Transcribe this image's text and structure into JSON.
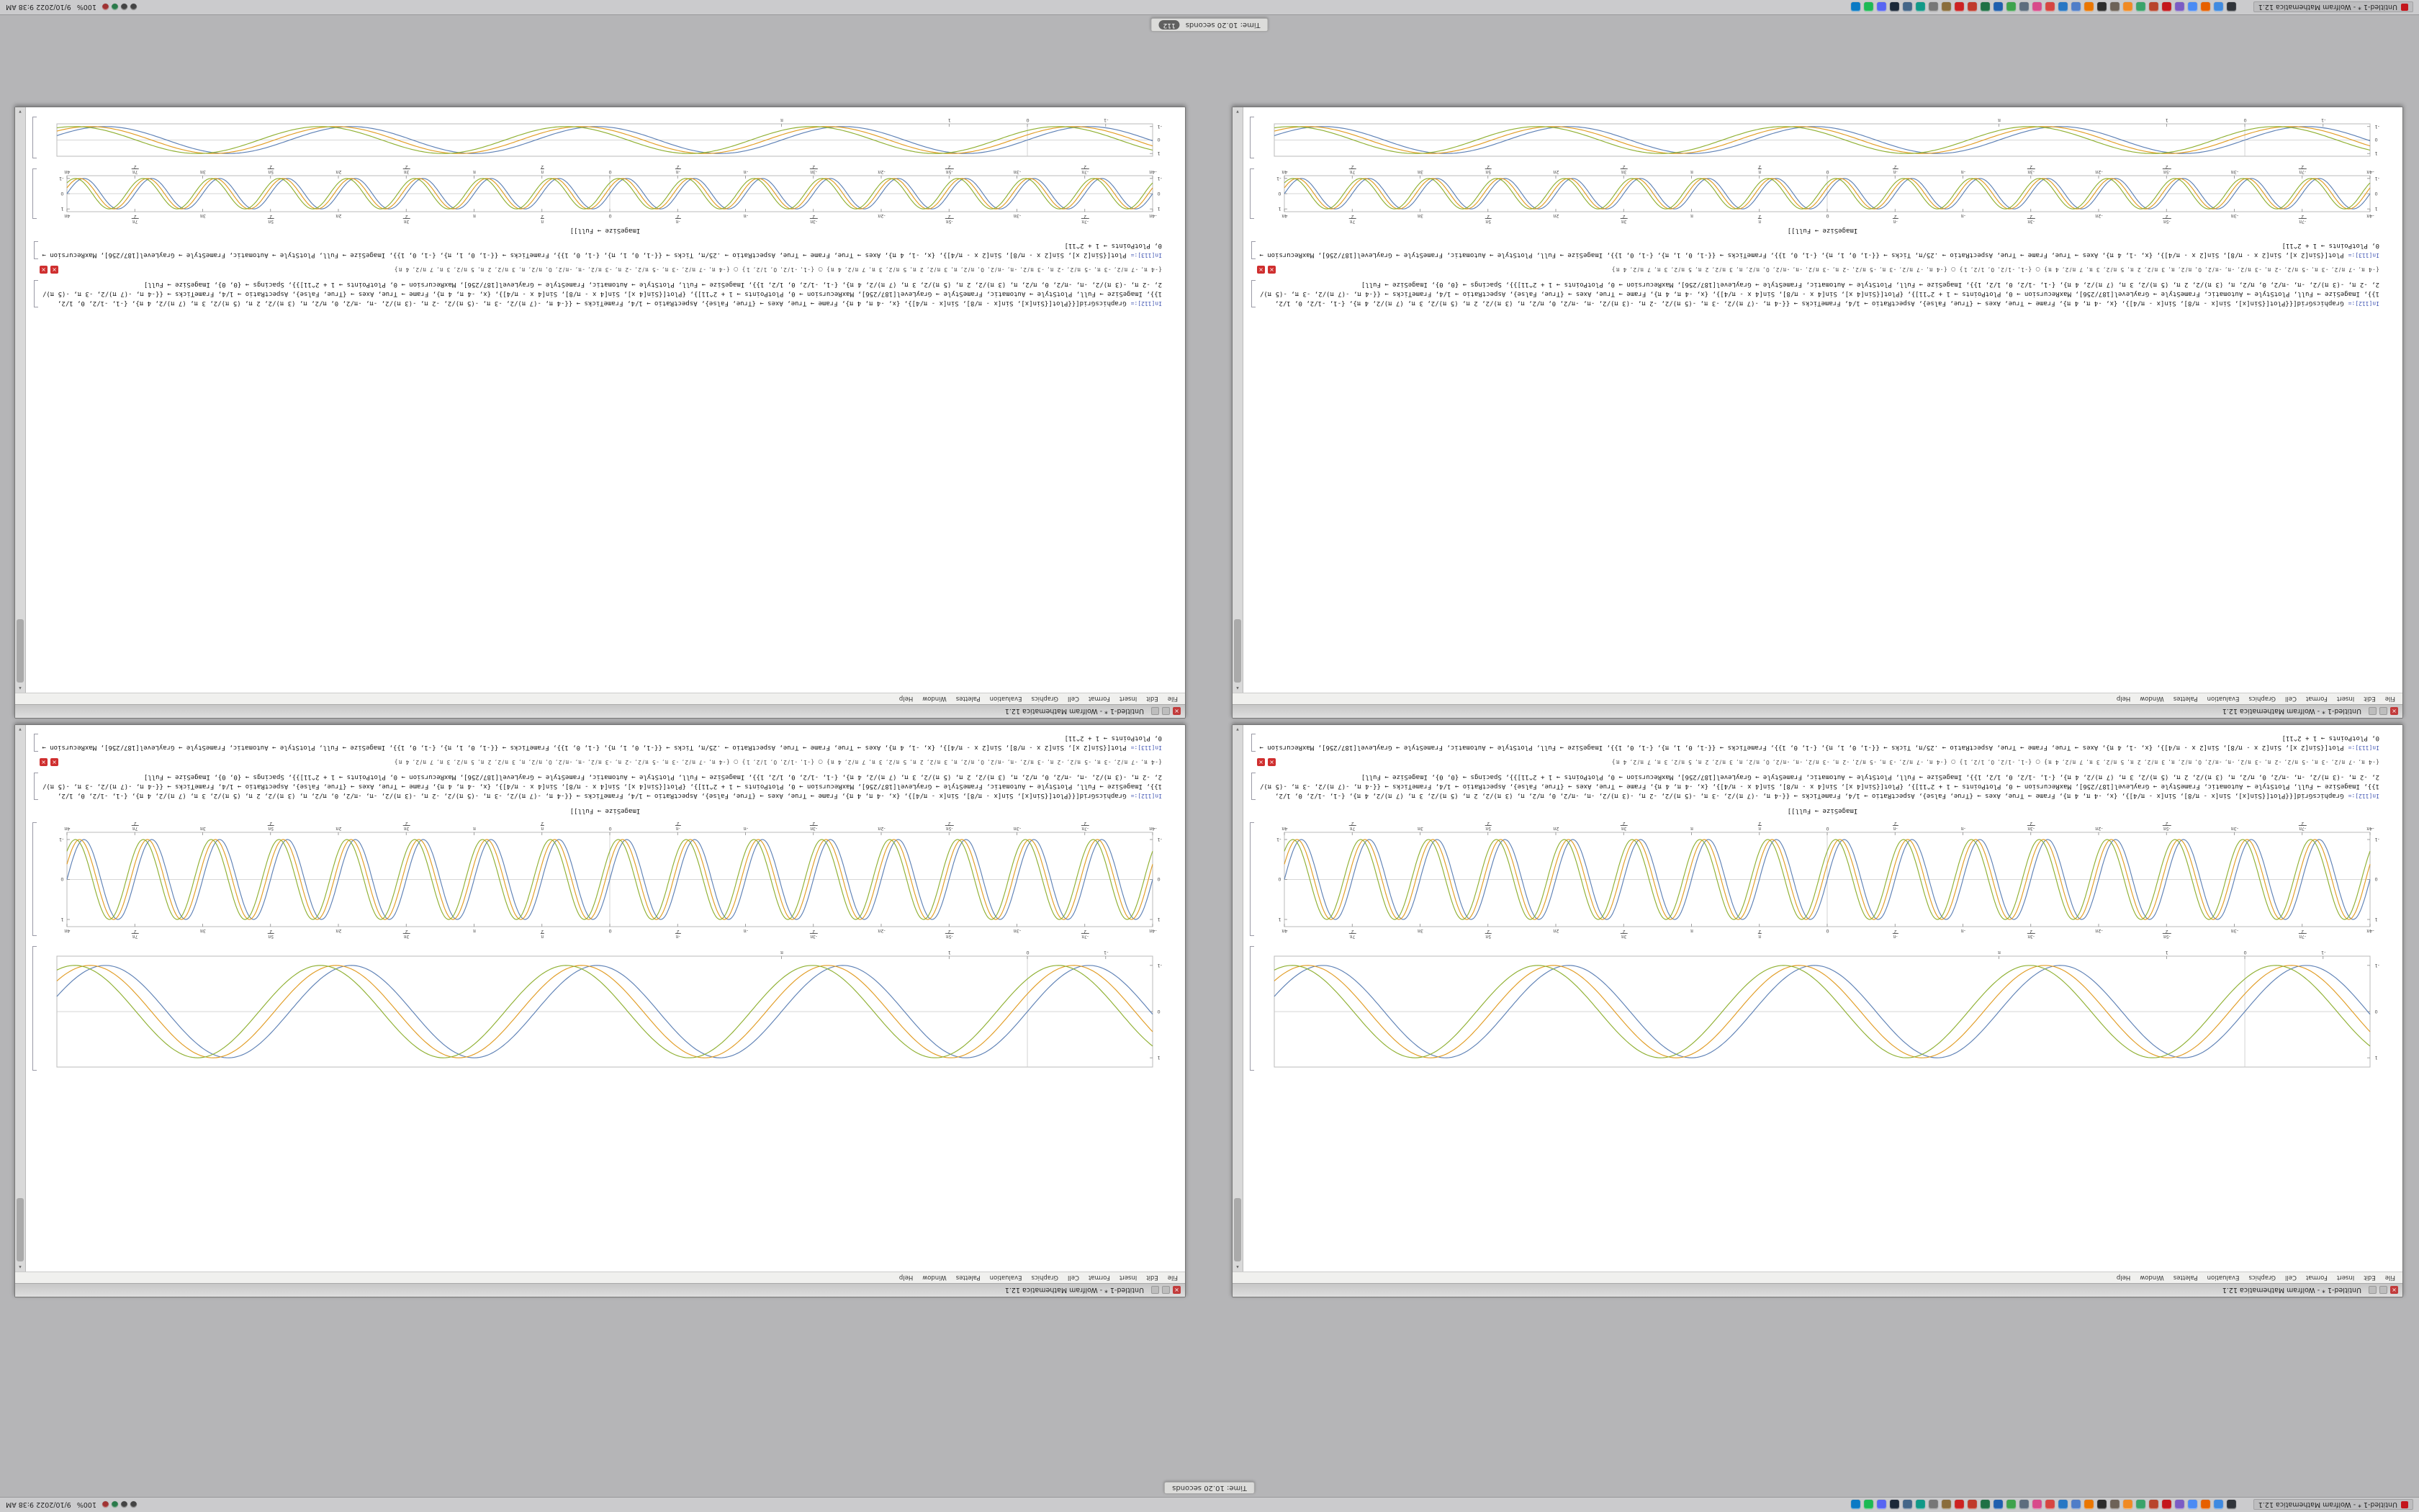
{
  "colors": {
    "accent_red": "#c4161c",
    "plot_blue": "#5e81b5",
    "plot_yellow": "#e19c24",
    "plot_green": "#8fb032",
    "frame_gray": "#bbbbbb"
  },
  "notifications": {
    "a": "Time: 10.20 seconds",
    "b": "Time: 10.20 seconds",
    "badge": "112"
  },
  "panels": {
    "task_label": "Untitled-1 * - Wolfram Mathematica 12.1",
    "clock": "9/10/2022  9:38 AM",
    "pct": "100%",
    "icons": [
      {
        "name": "terminal",
        "color": "#30343a"
      },
      {
        "name": "files",
        "color": "#3f8ae0"
      },
      {
        "name": "firefox",
        "color": "#e66000"
      },
      {
        "name": "chromium",
        "color": "#4b8bf4"
      },
      {
        "name": "editor",
        "color": "#7b5cc4"
      },
      {
        "name": "mathematica",
        "color": "#c4161c"
      },
      {
        "name": "kernel",
        "color": "#b8452c"
      },
      {
        "name": "image-viewer",
        "color": "#3aa36a"
      },
      {
        "name": "vlc",
        "color": "#f08a24"
      },
      {
        "name": "gimp",
        "color": "#6d6257"
      },
      {
        "name": "inkscape",
        "color": "#2c2c2c"
      },
      {
        "name": "blender",
        "color": "#ea7600"
      },
      {
        "name": "calculator",
        "color": "#4f7dc8"
      },
      {
        "name": "mail",
        "color": "#2777c4"
      },
      {
        "name": "calendar",
        "color": "#d64541"
      },
      {
        "name": "music",
        "color": "#d84a8b"
      },
      {
        "name": "camera",
        "color": "#5d6d7e"
      },
      {
        "name": "chat",
        "color": "#3fa34d"
      },
      {
        "name": "writer",
        "color": "#1f5fae"
      },
      {
        "name": "spreadsheet",
        "color": "#1e7145"
      },
      {
        "name": "slides",
        "color": "#c0392b"
      },
      {
        "name": "pdf-viewer",
        "color": "#cc2222"
      },
      {
        "name": "archive",
        "color": "#8a6d3b"
      },
      {
        "name": "settings",
        "color": "#777777"
      },
      {
        "name": "screenshot",
        "color": "#119988"
      },
      {
        "name": "system-monitor",
        "color": "#446688"
      },
      {
        "name": "steam",
        "color": "#1b2838"
      },
      {
        "name": "discord",
        "color": "#5865f2"
      },
      {
        "name": "spotify",
        "color": "#1db954"
      },
      {
        "name": "code",
        "color": "#0a7ac4"
      }
    ],
    "tray": [
      {
        "name": "network",
        "color": "#444444"
      },
      {
        "name": "volume",
        "color": "#444444"
      },
      {
        "name": "battery",
        "color": "#2a7a4a"
      },
      {
        "name": "clipboard",
        "color": "#a03333"
      }
    ]
  },
  "window": {
    "title": "Untitled-1 * - Wolfram Mathematica 12.1",
    "menu": [
      "File",
      "Edit",
      "Insert",
      "Format",
      "Cell",
      "Graphics",
      "Evaluation",
      "Palettes",
      "Window",
      "Help"
    ],
    "in_label": "In[112]:=",
    "in_label2": "In[113]:=",
    "code1": "GraphicsGrid[{{Plot[{Sin[x], Sin[x - π/8], Sin[x - π/4]}, {x, -4 π, 4 π}, Frame → True, Axes → {True, False}, AspectRatio → 1/4, FrameTicks → {{-4 π, -(7 π)/2, -3 π, -(5 π)/2, -2 π, -(3 π)/2, -π, -π/2, 0, π/2, π, (3 π)/2, 2 π, (5 π)/2, 3 π, (7 π)/2, 4 π}, {-1, -1/2, 0, 1/2, 1}}, ImageSize → Full, PlotStyle → Automatic, FrameStyle → GrayLevel[187/256], MaxRecursion → 0, PlotPoints → 1 + 2^11]}, {Plot[{Sin[4 x], Sin[4 x - π/8], Sin[4 x - π/4]}, {x, -4 π, 4 π}, Frame → True, Axes → {True, False}, AspectRatio → 1/4, FrameTicks → {{-4 π, -(7 π)/2, -3 π, -(5 π)/2, -2 π, -(3 π)/2, -π, -π/2, 0, π/2, π, (3 π)/2, 2 π, (5 π)/2, 3 π, (7 π)/2, 4 π}, {-1, -1/2, 0, 1/2, 1}}, ImageSize → Full, PlotStyle → Automatic, FrameStyle → GrayLevel[187/256], MaxRecursion → 0, PlotPoints → 1 + 2^11]}}, Spacings → {0, 0}, ImageSize → Full]",
    "code2": "Plot[{Sin[2 x], Sin[2 x - π/8], Sin[2 x - π/4]}, {x, -1, 4 π}, Axes → True, Frame → True, AspectRatio → .25/π, Ticks → {{-1, 0, 1, π}, {-1, 0, 1}}, FrameTicks → {{-1, 0, 1, π}, {-1, 0, 1}}, ImageSize → Full, PlotStyle → Automatic, FrameStyle → GrayLevel[187/256], MaxRecursion → 0, PlotPoints → 1 + 2^11]",
    "tickrow": "{-4 π, -7 π/2, -3 π, -5 π/2, -2 π, -3 π/2, -π, -π/2, 0, π/2, π, 3 π/2, 2 π, 5 π/2, 3 π, 7 π/2, 4 π} ○ {-1, -1/2, 0, 1/2, 1} ○ {-4 π, -7 π/2, -3 π, -5 π/2, -2 π, -3 π/2, -π, -π/2, 0, π/2, π, 3 π/2, 2 π, 5 π/2, 3 π, 7 π/2, 4 π}",
    "tail": "ImageSize → Full]]"
  },
  "chart_data": [
    {
      "id": "A",
      "type": "line",
      "title": "",
      "xlabel": "",
      "ylabel": "",
      "x_range": [
        -1.6,
        12.4
      ],
      "y_range": [
        -1.2,
        1.2
      ],
      "frame": true,
      "axes": true,
      "labels_top": false,
      "labels_right": false,
      "frame_color": "#bbbbbb",
      "x_ticks": [
        {
          "v": -1,
          "l": "-1"
        },
        {
          "v": 0,
          "l": "0"
        },
        {
          "v": 1,
          "l": "1"
        },
        {
          "v": 3.1416,
          "l": "π"
        }
      ],
      "y_ticks": [
        {
          "v": -1,
          "l": "-1"
        },
        {
          "v": 0,
          "l": "0"
        },
        {
          "v": 1,
          "l": "1"
        }
      ],
      "series": [
        {
          "name": "Sin[2x]",
          "freq": 2,
          "phase": 0,
          "color": "#5e81b5"
        },
        {
          "name": "Sin[2x - π/8]",
          "freq": 2,
          "phase": -0.3927,
          "color": "#e19c24"
        },
        {
          "name": "Sin[2x - π/4]",
          "freq": 2,
          "phase": -0.7854,
          "color": "#8fb032"
        }
      ]
    },
    {
      "id": "B",
      "type": "line",
      "title": "",
      "xlabel": "",
      "ylabel": "",
      "x_range": [
        -12.5664,
        12.5664
      ],
      "y_range": [
        -1.18,
        1.18
      ],
      "frame": true,
      "axes": true,
      "labels_top": true,
      "labels_right": true,
      "frame_color": "#bbbbbb",
      "x_ticks": [
        {
          "v": -12.5664,
          "l": "-4π"
        },
        {
          "v": -10.9956,
          "l": "-7π/2"
        },
        {
          "v": -9.4248,
          "l": "-3π"
        },
        {
          "v": -7.854,
          "l": "-5π/2"
        },
        {
          "v": -6.2832,
          "l": "-2π"
        },
        {
          "v": -4.7124,
          "l": "-3π/2"
        },
        {
          "v": -3.1416,
          "l": "-π"
        },
        {
          "v": -1.5708,
          "l": "-π/2"
        },
        {
          "v": 0,
          "l": "0"
        },
        {
          "v": 1.5708,
          "l": "π/2"
        },
        {
          "v": 3.1416,
          "l": "π"
        },
        {
          "v": 4.7124,
          "l": "3π/2"
        },
        {
          "v": 6.2832,
          "l": "2π"
        },
        {
          "v": 7.854,
          "l": "5π/2"
        },
        {
          "v": 9.4248,
          "l": "3π"
        },
        {
          "v": 10.9956,
          "l": "7π/2"
        },
        {
          "v": 12.5664,
          "l": "4π"
        }
      ],
      "y_ticks": [
        {
          "v": -1,
          "l": "-1"
        },
        {
          "v": 0,
          "l": "0"
        },
        {
          "v": 1,
          "l": "1"
        }
      ],
      "series": [
        {
          "name": "Sin[4x]",
          "freq": 4,
          "phase": 0,
          "color": "#5e81b5"
        },
        {
          "name": "Sin[4x - π/8]",
          "freq": 4,
          "phase": -0.3927,
          "color": "#e19c24"
        },
        {
          "name": "Sin[4x - π/4]",
          "freq": 4,
          "phase": -0.7854,
          "color": "#8fb032"
        }
      ]
    }
  ]
}
